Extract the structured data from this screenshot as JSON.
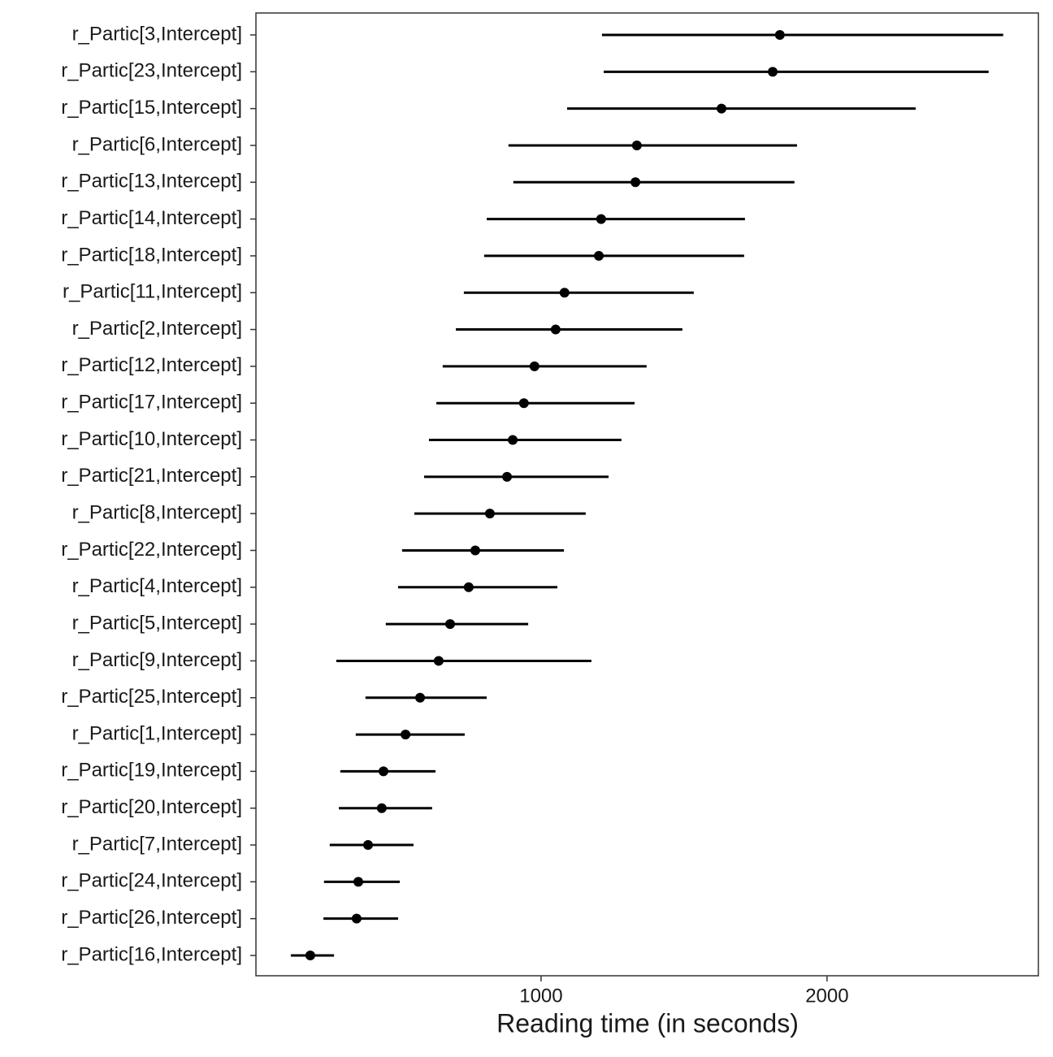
{
  "chart_data": {
    "type": "interval",
    "x_label": "Reading time (in seconds)",
    "categories": [
      "r_Partic[3,Intercept]",
      "r_Partic[23,Intercept]",
      "r_Partic[15,Intercept]",
      "r_Partic[6,Intercept]",
      "r_Partic[13,Intercept]",
      "r_Partic[14,Intercept]",
      "r_Partic[18,Intercept]",
      "r_Partic[11,Intercept]",
      "r_Partic[2,Intercept]",
      "r_Partic[12,Intercept]",
      "r_Partic[17,Intercept]",
      "r_Partic[10,Intercept]",
      "r_Partic[21,Intercept]",
      "r_Partic[8,Intercept]",
      "r_Partic[22,Intercept]",
      "r_Partic[4,Intercept]",
      "r_Partic[5,Intercept]",
      "r_Partic[9,Intercept]",
      "r_Partic[25,Intercept]",
      "r_Partic[1,Intercept]",
      "r_Partic[19,Intercept]",
      "r_Partic[20,Intercept]",
      "r_Partic[7,Intercept]",
      "r_Partic[24,Intercept]",
      "r_Partic[26,Intercept]",
      "r_Partic[16,Intercept]"
    ],
    "values": [
      1835,
      1810,
      1631,
      1335,
      1330,
      1210,
      1202,
      1082,
      1051,
      977,
      940,
      901,
      881,
      821,
      770,
      747,
      682,
      642,
      577,
      526,
      449,
      443,
      395,
      361,
      355,
      193
    ],
    "lower": [
      1213,
      1219,
      1091,
      886,
      903,
      810,
      801,
      730,
      702,
      656,
      634,
      608,
      591,
      557,
      514,
      500,
      457,
      284,
      386,
      352,
      298,
      293,
      261,
      241,
      239,
      125
    ],
    "upper": [
      2616,
      2565,
      2310,
      1895,
      1886,
      1713,
      1710,
      1534,
      1494,
      1369,
      1327,
      1281,
      1236,
      1156,
      1080,
      1057,
      955,
      1176,
      810,
      733,
      631,
      619,
      554,
      506,
      500,
      276
    ],
    "color": "#000000",
    "xlim": [
      3,
      2739
    ],
    "xticks": [
      1000,
      2000
    ],
    "grid": false
  }
}
